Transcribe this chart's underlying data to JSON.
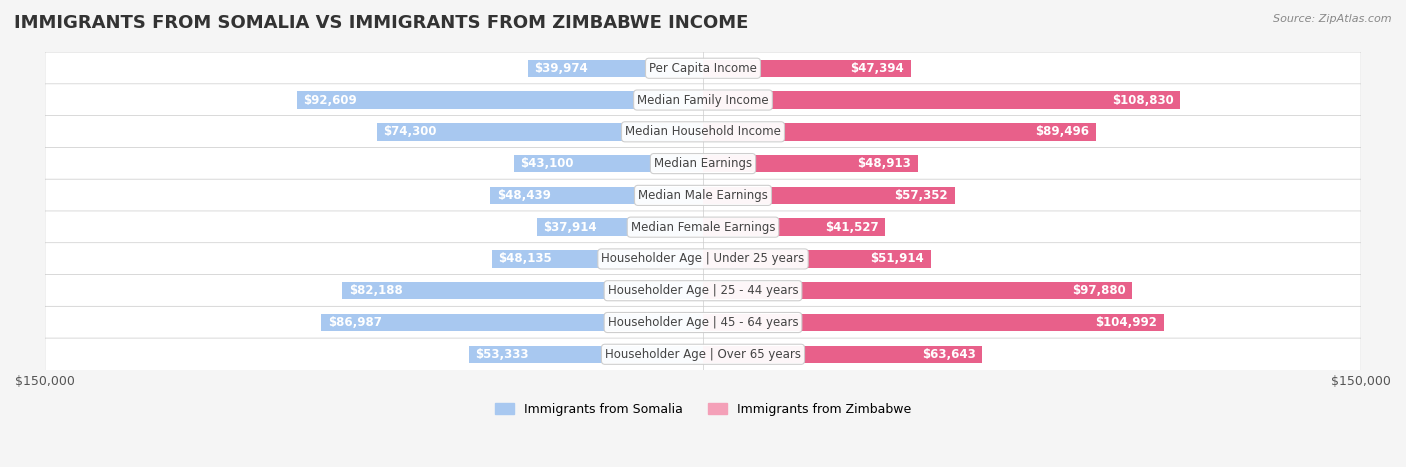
{
  "title": "IMMIGRANTS FROM SOMALIA VS IMMIGRANTS FROM ZIMBABWE INCOME",
  "source": "Source: ZipAtlas.com",
  "categories": [
    "Per Capita Income",
    "Median Family Income",
    "Median Household Income",
    "Median Earnings",
    "Median Male Earnings",
    "Median Female Earnings",
    "Householder Age | Under 25 years",
    "Householder Age | 25 - 44 years",
    "Householder Age | 45 - 64 years",
    "Householder Age | Over 65 years"
  ],
  "somalia_values": [
    39974,
    92609,
    74300,
    43100,
    48439,
    37914,
    48135,
    82188,
    86987,
    53333
  ],
  "zimbabwe_values": [
    47394,
    108830,
    89496,
    48913,
    57352,
    41527,
    51914,
    97880,
    104992,
    63643
  ],
  "somalia_labels": [
    "$39,974",
    "$92,609",
    "$74,300",
    "$43,100",
    "$48,439",
    "$37,914",
    "$48,135",
    "$82,188",
    "$86,987",
    "$53,333"
  ],
  "zimbabwe_labels": [
    "$47,394",
    "$108,830",
    "$89,496",
    "$48,913",
    "$57,352",
    "$41,527",
    "$51,914",
    "$97,880",
    "$104,992",
    "$63,643"
  ],
  "somalia_color_light": "#a8c8f0",
  "somalia_color_dark": "#6699cc",
  "zimbabwe_color_light": "#f4a0b8",
  "zimbabwe_color_dark": "#e8608a",
  "axis_limit": 150000,
  "legend_somalia": "Immigrants from Somalia",
  "legend_zimbabwe": "Immigrants from Zimbabwe",
  "bg_color": "#f5f5f5",
  "row_bg_color": "#ffffff",
  "title_fontsize": 13,
  "label_fontsize": 8.5,
  "category_fontsize": 8.5
}
